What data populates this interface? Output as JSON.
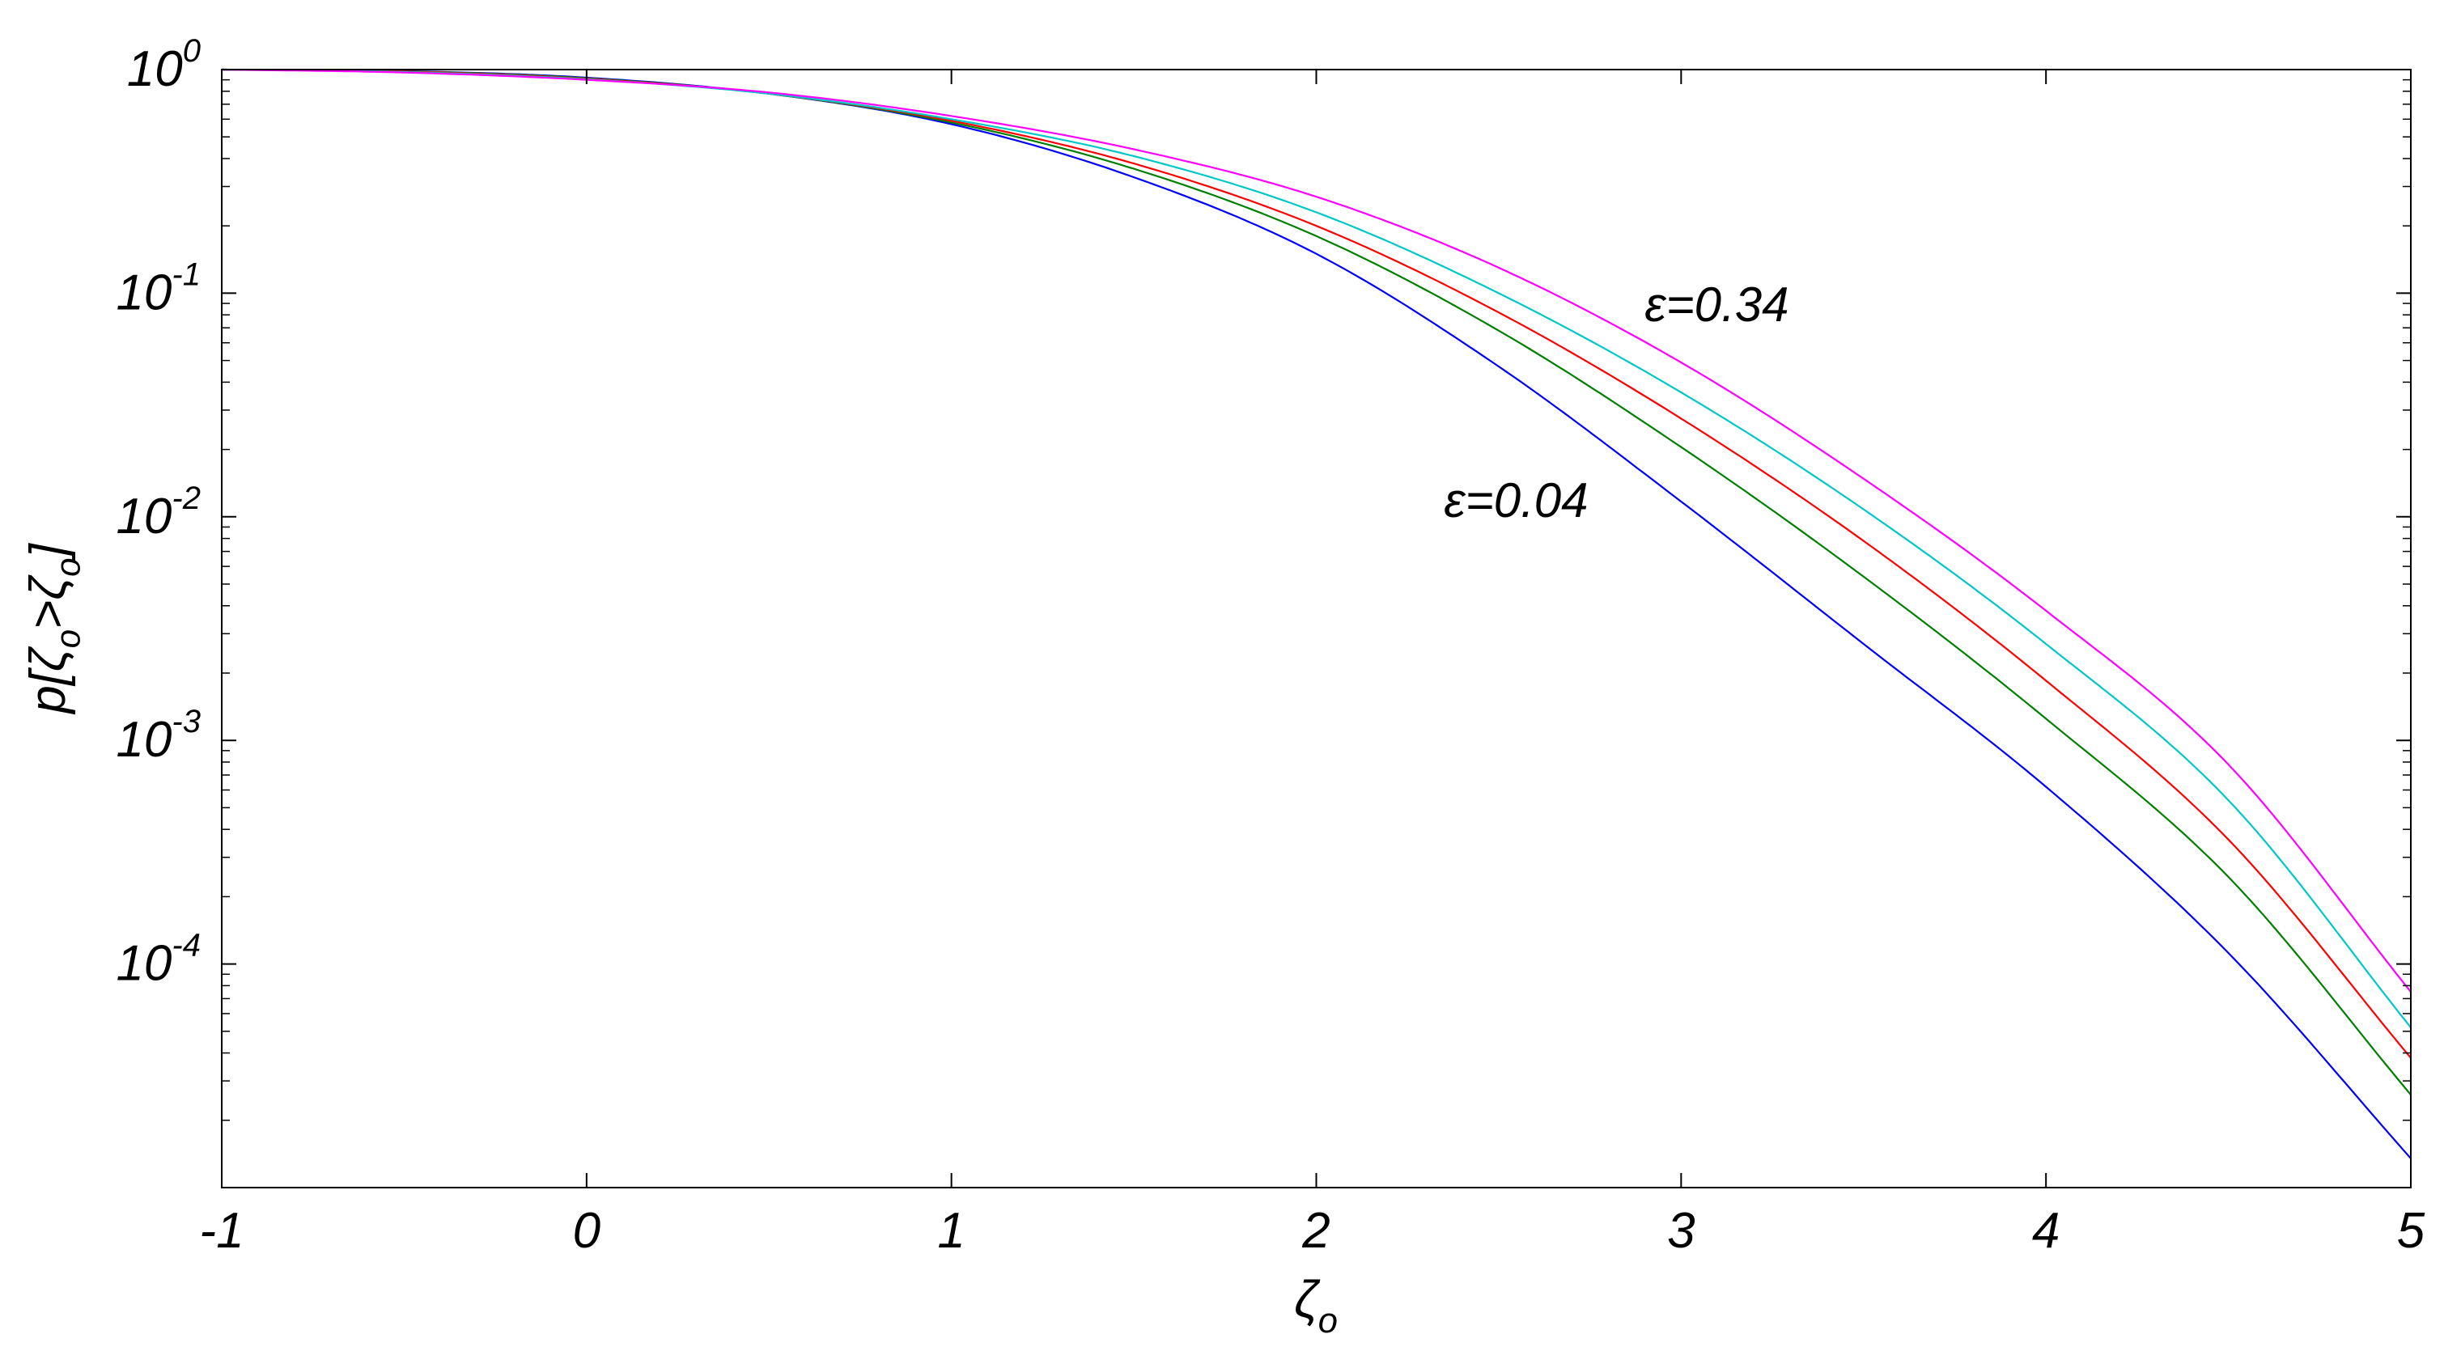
{
  "chart_data": {
    "type": "line",
    "title": "",
    "xlabel": "ζo",
    "ylabel": "p[ζo>ζo]",
    "xlim": [
      -1,
      5
    ],
    "ylim": [
      1e-05,
      1
    ],
    "yscale": "log",
    "grid": false,
    "x_ticks": [
      "-1",
      "0",
      "1",
      "2",
      "3",
      "4",
      "5"
    ],
    "y_ticks": [
      {
        "base": "10",
        "exp": "0"
      },
      {
        "base": "10",
        "exp": "-1"
      },
      {
        "base": "10",
        "exp": "-2"
      },
      {
        "base": "10",
        "exp": "-3"
      },
      {
        "base": "10",
        "exp": "-4"
      }
    ],
    "x": [
      -1,
      -0.5,
      0,
      0.5,
      1,
      1.5,
      2,
      2.5,
      3,
      3.5,
      4,
      4.5,
      5
    ],
    "series": [
      {
        "color": "#0000ff",
        "values": [
          1.0,
          0.985,
          0.92,
          0.78,
          0.57,
          0.33,
          0.15,
          0.047,
          0.0117,
          0.0027,
          0.00062,
          0.000112,
          1.35e-05
        ]
      },
      {
        "color": "#008000",
        "values": [
          1.0,
          0.983,
          0.915,
          0.78,
          0.58,
          0.36,
          0.18,
          0.068,
          0.0205,
          0.0054,
          0.00125,
          0.000245,
          2.6e-05
        ]
      },
      {
        "color": "#ff0000",
        "values": [
          1.0,
          0.98,
          0.91,
          0.78,
          0.59,
          0.38,
          0.2,
          0.082,
          0.0275,
          0.0078,
          0.00185,
          0.00036,
          3.8e-05
        ]
      },
      {
        "color": "#00c8c8",
        "values": [
          1.0,
          0.975,
          0.905,
          0.78,
          0.6,
          0.41,
          0.23,
          0.1,
          0.036,
          0.0108,
          0.0027,
          0.00054,
          5.2e-05
        ]
      },
      {
        "color": "#ff00ff",
        "values": [
          1.0,
          0.97,
          0.9,
          0.79,
          0.62,
          0.44,
          0.27,
          0.13,
          0.049,
          0.0148,
          0.0038,
          0.00078,
          7.5e-05
        ]
      }
    ],
    "annotations": [
      {
        "label": "ε=0.34",
        "x": 2.9,
        "y": 0.075
      },
      {
        "label": "ε=0.04",
        "x": 2.35,
        "y": 0.01
      }
    ]
  }
}
